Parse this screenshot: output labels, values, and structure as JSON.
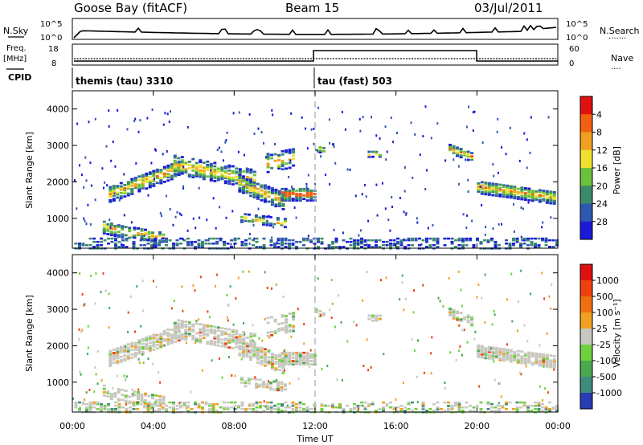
{
  "header": {
    "station": "Goose Bay (fitACF)",
    "beam": "Beam 15",
    "date": "03/Jul/2011"
  },
  "strip": {
    "nsky_label": "N.Sky",
    "nsearch_label": "N.Search",
    "nsearch_dots": ".......",
    "counts_ticks": [
      "10^5",
      "10^0"
    ],
    "freq_label": "Freq.",
    "freq_unit": "[MHz]",
    "freq_ticks": [
      "18",
      "8"
    ],
    "nave_label": "Nave",
    "nave_dots": "....",
    "nave_ticks": [
      "60",
      "0"
    ],
    "cpid_label": "CPID",
    "cpid_segments": [
      {
        "name": "themis (tau) 3310",
        "start_hour": 0,
        "end_hour": 12
      },
      {
        "name": "tau (fast) 503",
        "start_hour": 12,
        "end_hour": 24
      }
    ]
  },
  "chart_data": [
    {
      "type": "heatmap",
      "name": "power",
      "ylabel": "Slant Range [km]",
      "ylim": [
        180,
        4500
      ],
      "yticks": [
        "1000",
        "2000",
        "3000",
        "4000"
      ],
      "xlim": [
        0,
        24
      ],
      "colorbar_label": "Power [dB]",
      "colorbar_ticks": [
        "4",
        "8",
        "12",
        "16",
        "20",
        "24",
        "28"
      ],
      "colors": [
        "#1a1ad8",
        "#2e58b0",
        "#3c8a6c",
        "#6cc03c",
        "#f0e030",
        "#f0a020",
        "#f06010",
        "#e01010"
      ]
    },
    {
      "type": "heatmap",
      "name": "velocity",
      "ylabel": "Slant Range [km]",
      "ylim": [
        180,
        4500
      ],
      "yticks": [
        "1000",
        "2000",
        "3000",
        "4000"
      ],
      "xlim": [
        0,
        24
      ],
      "xticks": [
        "00:00",
        "04:00",
        "08:00",
        "12:00",
        "16:00",
        "20:00",
        "00:00"
      ],
      "xlabel": "Time UT",
      "colorbar_label": "Velocity [m s⁻¹]",
      "colorbar_ticks": [
        "1000",
        "500",
        "100",
        "25",
        "-25",
        "-100",
        "-500",
        "-1000"
      ],
      "colors": [
        "#2a3cb4",
        "#3e8c7c",
        "#4aa850",
        "#70d040",
        "#c8c8c0",
        "#f0a020",
        "#f07010",
        "#f04010",
        "#e01010"
      ]
    }
  ]
}
